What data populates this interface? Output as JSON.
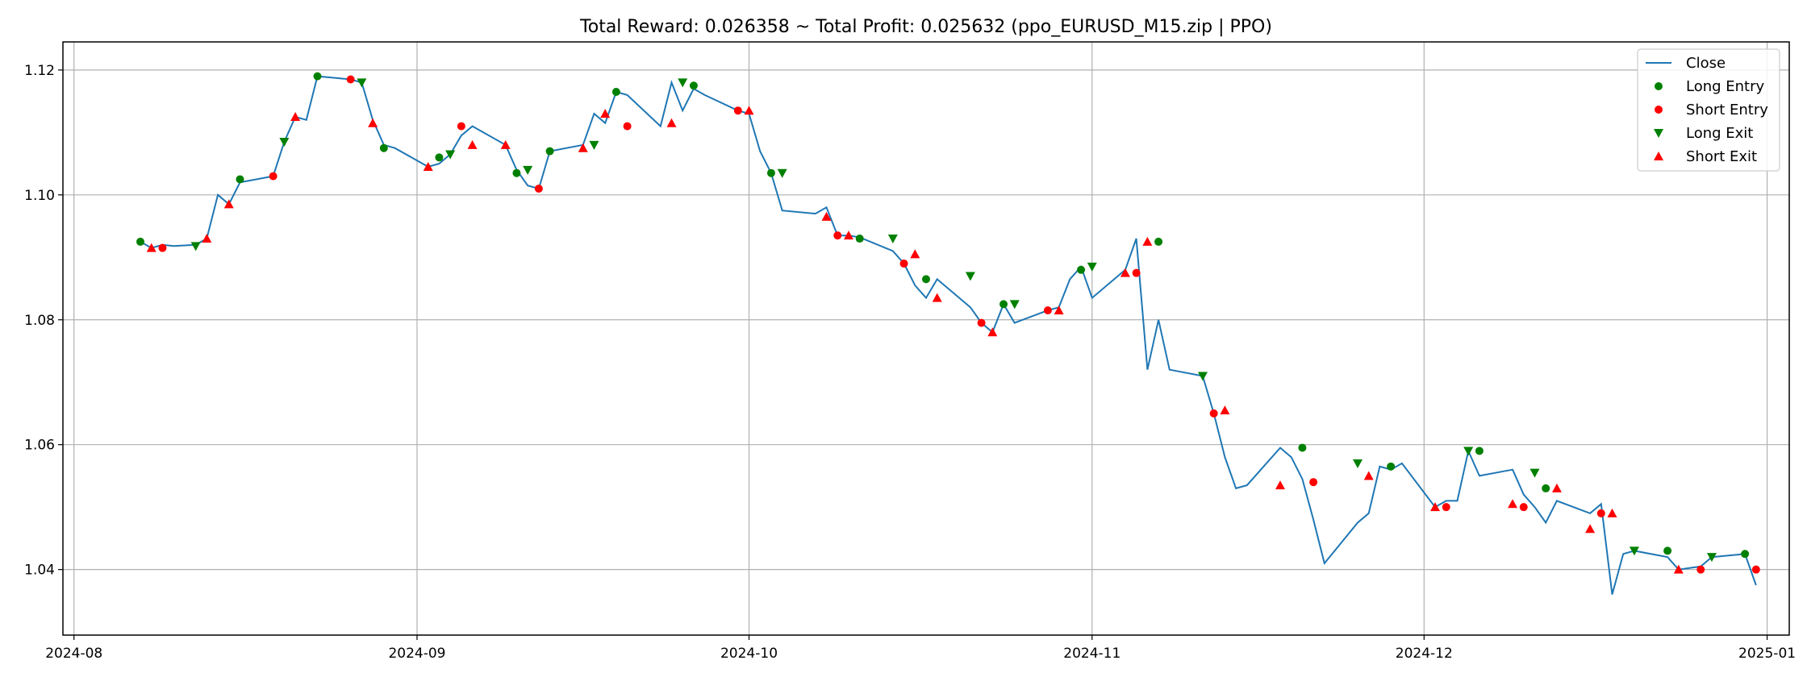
{
  "chart_data": {
    "type": "line",
    "title": "Total Reward: 0.026358 ~ Total Profit: 0.025632  (ppo_EURUSD_M15.zip | PPO)",
    "xlabel": "",
    "ylabel": "",
    "x_axis_type": "date",
    "xlim": [
      "2024-07-31",
      "2025-01-03"
    ],
    "ylim": [
      1.0295,
      1.1245
    ],
    "grid": true,
    "legend_position": "upper right",
    "x_ticks": [
      "2024-08-01",
      "2024-09-01",
      "2024-10-01",
      "2024-11-01",
      "2024-12-01",
      "2025-01-01"
    ],
    "x_tick_labels": [
      "2024-08",
      "2024-09",
      "2024-10",
      "2024-11",
      "2024-12",
      "2025-01"
    ],
    "y_ticks": [
      1.04,
      1.06,
      1.08,
      1.1,
      1.12
    ],
    "y_tick_labels": [
      "1.04",
      "1.06",
      "1.08",
      "1.10",
      "1.12"
    ],
    "colors": {
      "close": "#1f77b4",
      "long_entry": "#008000",
      "short_entry": "#ff0000",
      "long_exit": "#008000",
      "short_exit": "#ff0000",
      "grid": "#b0b0b0"
    },
    "legend": [
      {
        "label": "Close",
        "marker": "line",
        "color": "#1f77b4"
      },
      {
        "label": "Long Entry",
        "marker": "circle",
        "color": "#008000"
      },
      {
        "label": "Short Entry",
        "marker": "circle",
        "color": "#ff0000"
      },
      {
        "label": "Long Exit",
        "marker": "triangle-down",
        "color": "#008000"
      },
      {
        "label": "Short Exit",
        "marker": "triangle-up",
        "color": "#ff0000"
      }
    ],
    "series": [
      {
        "name": "Close",
        "style": "line",
        "x": [
          "2024-08-07",
          "2024-08-08",
          "2024-08-09",
          "2024-08-10",
          "2024-08-12",
          "2024-08-13",
          "2024-08-14",
          "2024-08-15",
          "2024-08-16",
          "2024-08-19",
          "2024-08-20",
          "2024-08-21",
          "2024-08-22",
          "2024-08-23",
          "2024-08-26",
          "2024-08-27",
          "2024-08-28",
          "2024-08-29",
          "2024-08-30",
          "2024-09-02",
          "2024-09-03",
          "2024-09-04",
          "2024-09-05",
          "2024-09-06",
          "2024-09-09",
          "2024-09-10",
          "2024-09-11",
          "2024-09-12",
          "2024-09-13",
          "2024-09-16",
          "2024-09-17",
          "2024-09-18",
          "2024-09-19",
          "2024-09-20",
          "2024-09-23",
          "2024-09-24",
          "2024-09-25",
          "2024-09-26",
          "2024-09-27",
          "2024-09-30",
          "2024-10-01",
          "2024-10-02",
          "2024-10-03",
          "2024-10-04",
          "2024-10-07",
          "2024-10-08",
          "2024-10-09",
          "2024-10-10",
          "2024-10-11",
          "2024-10-14",
          "2024-10-15",
          "2024-10-16",
          "2024-10-17",
          "2024-10-18",
          "2024-10-21",
          "2024-10-22",
          "2024-10-23",
          "2024-10-24",
          "2024-10-25",
          "2024-10-28",
          "2024-10-29",
          "2024-10-30",
          "2024-10-31",
          "2024-11-01",
          "2024-11-04",
          "2024-11-05",
          "2024-11-06",
          "2024-11-07",
          "2024-11-08",
          "2024-11-11",
          "2024-11-12",
          "2024-11-13",
          "2024-11-14",
          "2024-11-15",
          "2024-11-18",
          "2024-11-19",
          "2024-11-20",
          "2024-11-21",
          "2024-11-22",
          "2024-11-25",
          "2024-11-26",
          "2024-11-27",
          "2024-11-28",
          "2024-11-29",
          "2024-12-02",
          "2024-12-03",
          "2024-12-04",
          "2024-12-05",
          "2024-12-06",
          "2024-12-09",
          "2024-12-10",
          "2024-12-11",
          "2024-12-12",
          "2024-12-13",
          "2024-12-16",
          "2024-12-17",
          "2024-12-18",
          "2024-12-19",
          "2024-12-20",
          "2024-12-23",
          "2024-12-24",
          "2024-12-26",
          "2024-12-27",
          "2024-12-30",
          "2024-12-31"
        ],
        "values": [
          1.0925,
          1.0915,
          1.092,
          1.0918,
          1.092,
          1.093,
          1.1,
          1.0985,
          1.102,
          1.103,
          1.1085,
          1.1125,
          1.112,
          1.119,
          1.1185,
          1.118,
          1.112,
          1.108,
          1.1075,
          1.1045,
          1.105,
          1.1065,
          1.1095,
          1.111,
          1.108,
          1.104,
          1.1015,
          1.101,
          1.107,
          1.108,
          1.113,
          1.1115,
          1.1165,
          1.116,
          1.111,
          1.118,
          1.1135,
          1.117,
          1.116,
          1.1135,
          1.113,
          1.107,
          1.1035,
          1.0975,
          1.097,
          1.098,
          1.0935,
          1.0935,
          1.0932,
          1.091,
          1.089,
          1.0855,
          1.0835,
          1.0865,
          1.082,
          1.0795,
          1.078,
          1.0825,
          1.0795,
          1.0815,
          1.082,
          1.0865,
          1.0885,
          1.0835,
          1.088,
          1.093,
          1.072,
          1.08,
          1.072,
          1.071,
          1.065,
          1.058,
          1.053,
          1.0535,
          1.0595,
          1.058,
          1.0545,
          1.048,
          1.041,
          1.0475,
          1.049,
          1.0565,
          1.056,
          1.057,
          1.05,
          1.051,
          1.051,
          1.059,
          1.055,
          1.056,
          1.052,
          1.05,
          1.0475,
          1.051,
          1.049,
          1.0505,
          1.036,
          1.0425,
          1.043,
          1.042,
          1.04,
          1.0405,
          1.042,
          1.0425,
          1.0375
        ]
      },
      {
        "name": "Long Entry",
        "style": "marker",
        "marker": "circle",
        "x": [
          "2024-08-07",
          "2024-08-16",
          "2024-08-23",
          "2024-08-29",
          "2024-09-03",
          "2024-09-10",
          "2024-09-13",
          "2024-09-19",
          "2024-09-26",
          "2024-10-03",
          "2024-10-11",
          "2024-10-17",
          "2024-10-24",
          "2024-10-31",
          "2024-11-07",
          "2024-11-20",
          "2024-11-28",
          "2024-12-06",
          "2024-12-12",
          "2024-12-23",
          "2024-12-30"
        ],
        "values": [
          1.0925,
          1.1025,
          1.119,
          1.1075,
          1.106,
          1.1035,
          1.107,
          1.1165,
          1.1175,
          1.1035,
          1.093,
          1.0865,
          1.0825,
          1.088,
          1.0925,
          1.0595,
          1.0565,
          1.059,
          1.053,
          1.043,
          1.0425
        ]
      },
      {
        "name": "Short Entry",
        "style": "marker",
        "marker": "circle",
        "x": [
          "2024-08-09",
          "2024-08-19",
          "2024-08-26",
          "2024-09-05",
          "2024-09-12",
          "2024-09-20",
          "2024-09-30",
          "2024-10-09",
          "2024-10-15",
          "2024-10-22",
          "2024-10-28",
          "2024-11-05",
          "2024-11-12",
          "2024-11-21",
          "2024-12-03",
          "2024-12-10",
          "2024-12-17",
          "2024-12-26",
          "2024-12-31"
        ],
        "values": [
          1.0915,
          1.103,
          1.1185,
          1.111,
          1.101,
          1.111,
          1.1135,
          1.0935,
          1.089,
          1.0795,
          1.0815,
          1.0875,
          1.065,
          1.054,
          1.05,
          1.05,
          1.049,
          1.04,
          1.04
        ]
      },
      {
        "name": "Long Exit",
        "style": "marker",
        "marker": "triangle-down",
        "x": [
          "2024-08-12",
          "2024-08-20",
          "2024-08-27",
          "2024-09-04",
          "2024-09-11",
          "2024-09-17",
          "2024-09-25",
          "2024-10-04",
          "2024-10-14",
          "2024-10-21",
          "2024-10-25",
          "2024-11-01",
          "2024-11-11",
          "2024-11-25",
          "2024-12-05",
          "2024-12-11",
          "2024-12-20",
          "2024-12-27"
        ],
        "values": [
          1.0918,
          1.1085,
          1.118,
          1.1065,
          1.104,
          1.108,
          1.118,
          1.1035,
          1.093,
          1.087,
          1.0825,
          1.0885,
          1.071,
          1.057,
          1.059,
          1.0555,
          1.043,
          1.042
        ]
      },
      {
        "name": "Short Exit",
        "style": "marker",
        "marker": "triangle-up",
        "x": [
          "2024-08-08",
          "2024-08-13",
          "2024-08-15",
          "2024-08-21",
          "2024-08-28",
          "2024-09-02",
          "2024-09-06",
          "2024-09-09",
          "2024-09-16",
          "2024-09-18",
          "2024-09-24",
          "2024-10-01",
          "2024-10-08",
          "2024-10-10",
          "2024-10-16",
          "2024-10-18",
          "2024-10-23",
          "2024-10-29",
          "2024-11-04",
          "2024-11-06",
          "2024-11-13",
          "2024-11-18",
          "2024-11-26",
          "2024-12-02",
          "2024-12-09",
          "2024-12-13",
          "2024-12-16",
          "2024-12-18",
          "2024-12-24"
        ],
        "values": [
          1.0915,
          1.093,
          1.0985,
          1.1125,
          1.1115,
          1.1045,
          1.108,
          1.108,
          1.1075,
          1.113,
          1.1115,
          1.1135,
          1.0965,
          1.0935,
          1.0905,
          1.0835,
          1.078,
          1.0815,
          1.0875,
          1.0925,
          1.0655,
          1.0535,
          1.055,
          1.05,
          1.0505,
          1.053,
          1.0465,
          1.049,
          1.04
        ]
      }
    ]
  }
}
